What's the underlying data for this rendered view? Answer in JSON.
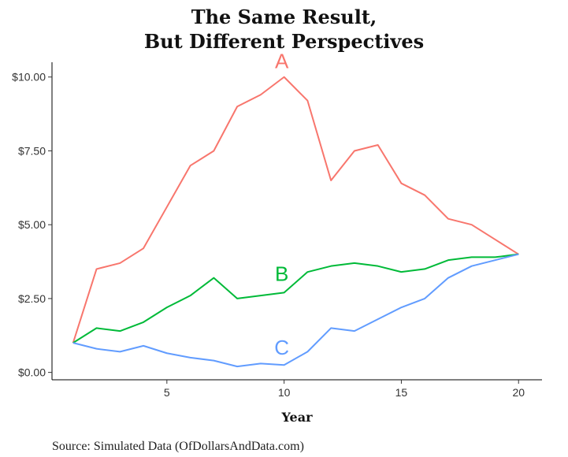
{
  "title_line1": "The Same Result,",
  "title_line2": "But Different Perspectives",
  "source": "Source:  Simulated Data (OfDollarsAndData.com)",
  "chart_data": {
    "type": "line",
    "xlabel": "Year",
    "ylabel": "",
    "xlim": [
      0.1,
      21
    ],
    "ylim": [
      -0.25,
      10.5
    ],
    "x_ticks": [
      5,
      10,
      15,
      20
    ],
    "y_ticks": [
      0,
      2.5,
      5,
      7.5,
      10
    ],
    "y_tick_labels": [
      "$0.00",
      "$2.50",
      "$5.00",
      "$7.50",
      "$10.00"
    ],
    "grid": false,
    "x": [
      1,
      2,
      3,
      4,
      5,
      6,
      7,
      8,
      9,
      10,
      11,
      12,
      13,
      14,
      15,
      16,
      17,
      18,
      19,
      20
    ],
    "series": [
      {
        "name": "A",
        "color": "#F8766D",
        "label_at": [
          9.9,
          10.3
        ],
        "values": [
          1.0,
          3.5,
          3.7,
          4.2,
          5.6,
          7.0,
          7.5,
          9.0,
          9.4,
          10.0,
          9.2,
          6.5,
          7.5,
          7.7,
          6.4,
          6.0,
          5.2,
          5.0,
          4.5,
          4.0
        ]
      },
      {
        "name": "B",
        "color": "#00BA38",
        "label_at": [
          9.9,
          3.1
        ],
        "values": [
          1.0,
          1.5,
          1.4,
          1.7,
          2.2,
          2.6,
          3.2,
          2.5,
          2.6,
          2.7,
          3.4,
          3.6,
          3.7,
          3.6,
          3.4,
          3.5,
          3.8,
          3.9,
          3.9,
          4.0
        ]
      },
      {
        "name": "C",
        "color": "#619CFF",
        "label_at": [
          9.9,
          0.6
        ],
        "values": [
          1.0,
          0.8,
          0.7,
          0.9,
          0.65,
          0.5,
          0.4,
          0.2,
          0.3,
          0.25,
          0.7,
          1.5,
          1.4,
          1.8,
          2.2,
          2.5,
          3.2,
          3.6,
          3.8,
          4.0
        ]
      }
    ]
  }
}
